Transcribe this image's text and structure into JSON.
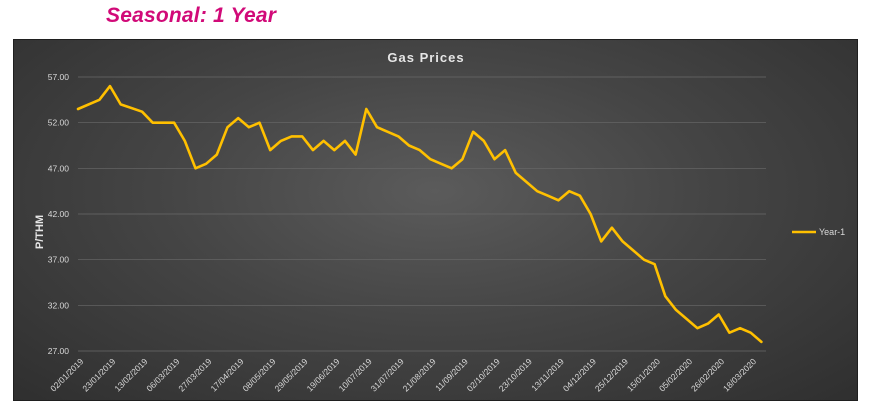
{
  "heading": "Seasonal: 1 Year",
  "chart_data": {
    "type": "line",
    "title": "Gas Prices",
    "ylabel": "P/THM",
    "xlabel": "",
    "ylim": [
      27,
      57
    ],
    "yticks": [
      "57.00",
      "52.00",
      "47.00",
      "42.00",
      "37.00",
      "32.00",
      "27.00"
    ],
    "grid": true,
    "legend_position": "right",
    "colors": {
      "series": "#ffc000",
      "background": "#404040",
      "heading": "#d10a78"
    },
    "xticks": [
      "02/01/2019",
      "23/01/2019",
      "13/02/2019",
      "06/03/2019",
      "27/03/2019",
      "17/04/2019",
      "08/05/2019",
      "29/05/2019",
      "19/06/2019",
      "10/07/2019",
      "31/07/2019",
      "21/08/2019",
      "11/09/2019",
      "02/10/2019",
      "23/10/2019",
      "13/11/2019",
      "04/12/2019",
      "25/12/2019",
      "15/01/2020",
      "05/02/2020",
      "26/02/2020",
      "18/03/2020"
    ],
    "series": [
      {
        "name": "Year-1",
        "x": [
          "02/01/2019",
          "16/01/2019",
          "23/01/2019",
          "30/01/2019",
          "13/02/2019",
          "20/02/2019",
          "06/03/2019",
          "13/03/2019",
          "20/03/2019",
          "27/03/2019",
          "03/04/2019",
          "10/04/2019",
          "17/04/2019",
          "24/04/2019",
          "01/05/2019",
          "08/05/2019",
          "15/05/2019",
          "22/05/2019",
          "29/05/2019",
          "05/06/2019",
          "12/06/2019",
          "19/06/2019",
          "26/06/2019",
          "03/07/2019",
          "10/07/2019",
          "17/07/2019",
          "24/07/2019",
          "31/07/2019",
          "07/08/2019",
          "14/08/2019",
          "21/08/2019",
          "28/08/2019",
          "04/09/2019",
          "11/09/2019",
          "18/09/2019",
          "25/09/2019",
          "02/10/2019",
          "09/10/2019",
          "16/10/2019",
          "23/10/2019",
          "30/10/2019",
          "06/11/2019",
          "13/11/2019",
          "20/11/2019",
          "27/11/2019",
          "04/12/2019",
          "11/12/2019",
          "18/12/2019",
          "25/12/2019",
          "01/01/2020",
          "08/01/2020",
          "15/01/2020",
          "22/01/2020",
          "29/01/2020",
          "05/02/2020",
          "12/02/2020",
          "19/02/2020",
          "26/02/2020",
          "04/03/2020",
          "11/03/2020",
          "18/03/2020",
          "25/03/2020"
        ],
        "values": [
          53.5,
          54.5,
          56.0,
          54.0,
          53.2,
          52.0,
          52.0,
          50.0,
          47.0,
          47.5,
          48.5,
          51.5,
          52.5,
          51.5,
          52.0,
          49.0,
          50.0,
          50.5,
          50.5,
          49.0,
          50.0,
          49.0,
          50.0,
          48.5,
          53.5,
          51.5,
          51.0,
          50.5,
          49.5,
          49.0,
          48.0,
          47.5,
          47.0,
          48.0,
          51.0,
          50.0,
          48.0,
          49.0,
          46.5,
          45.5,
          44.5,
          44.0,
          43.5,
          44.5,
          44.0,
          42.0,
          39.0,
          40.5,
          39.0,
          38.0,
          37.0,
          36.5,
          33.0,
          31.5,
          30.5,
          29.5,
          30.0,
          31.0,
          29.0,
          29.5,
          29.0,
          28.0
        ]
      }
    ]
  }
}
